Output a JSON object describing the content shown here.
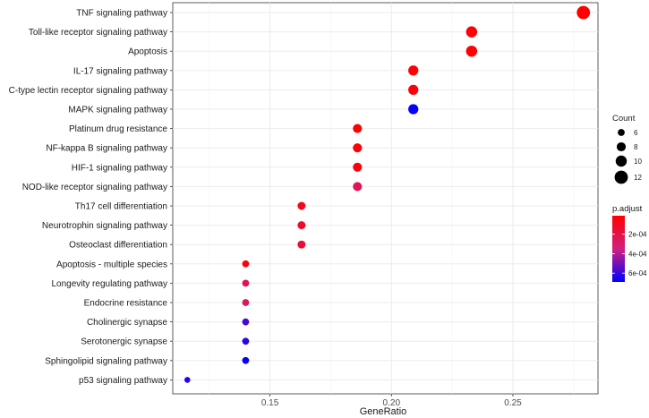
{
  "chart_data": {
    "type": "scatter",
    "xlabel": "GeneRatio",
    "ylabel": "",
    "xlim": [
      0.11,
      0.285
    ],
    "xticks": [
      0.15,
      0.2,
      0.25
    ],
    "xtick_labels": [
      "0.15",
      "0.20",
      "0.25"
    ],
    "grid": true,
    "points": [
      {
        "term": "TNF signaling pathway",
        "x": 0.279,
        "count": 12,
        "padj": 1e-05
      },
      {
        "term": "Toll-like receptor signaling pathway",
        "x": 0.233,
        "count": 10,
        "padj": 2e-05
      },
      {
        "term": "Apoptosis",
        "x": 0.233,
        "count": 10,
        "padj": 2e-05
      },
      {
        "term": "IL-17 signaling pathway",
        "x": 0.209,
        "count": 9,
        "padj": 2e-05
      },
      {
        "term": "C-type lectin receptor signaling pathway",
        "x": 0.209,
        "count": 9,
        "padj": 3e-05
      },
      {
        "term": "MAPK signaling pathway",
        "x": 0.209,
        "count": 9,
        "padj": 0.00068
      },
      {
        "term": "Platinum drug resistance",
        "x": 0.186,
        "count": 8,
        "padj": 2e-05
      },
      {
        "term": "NF-kappa B signaling pathway",
        "x": 0.186,
        "count": 8,
        "padj": 2e-05
      },
      {
        "term": "HIF-1 signaling pathway",
        "x": 0.186,
        "count": 8,
        "padj": 4e-05
      },
      {
        "term": "NOD-like receptor signaling pathway",
        "x": 0.186,
        "count": 8,
        "padj": 0.00024
      },
      {
        "term": "Th17 cell differentiation",
        "x": 0.163,
        "count": 7,
        "padj": 8e-05
      },
      {
        "term": "Neurotrophin signaling pathway",
        "x": 0.163,
        "count": 7,
        "padj": 0.00012
      },
      {
        "term": "Osteoclast differentiation",
        "x": 0.163,
        "count": 7,
        "padj": 0.00015
      },
      {
        "term": "Apoptosis - multiple species",
        "x": 0.14,
        "count": 6,
        "padj": 4e-05
      },
      {
        "term": "Longevity regulating pathway",
        "x": 0.14,
        "count": 6,
        "padj": 0.00022
      },
      {
        "term": "Endocrine resistance",
        "x": 0.14,
        "count": 6,
        "padj": 0.00026
      },
      {
        "term": "Cholinergic synapse",
        "x": 0.14,
        "count": 6,
        "padj": 0.00058
      },
      {
        "term": "Serotonergic synapse",
        "x": 0.14,
        "count": 6,
        "padj": 0.00062
      },
      {
        "term": "Sphingolipid signaling pathway",
        "x": 0.14,
        "count": 6,
        "padj": 0.00068
      },
      {
        "term": "p53 signaling pathway",
        "x": 0.116,
        "count": 5,
        "padj": 0.00064
      }
    ],
    "size_legend": {
      "title": "Count",
      "values": [
        6,
        8,
        10,
        12
      ],
      "labels": [
        "6",
        "8",
        "10",
        "12"
      ]
    },
    "color_legend": {
      "title": "p.adjust",
      "range": [
        1e-05,
        0.00069
      ],
      "ticks": [
        0.0002,
        0.0004,
        0.0006
      ],
      "tick_labels": [
        "2e-04",
        "4e-04",
        "6e-04"
      ],
      "low_color": "#ff0000",
      "high_color": "#0000ff"
    }
  }
}
